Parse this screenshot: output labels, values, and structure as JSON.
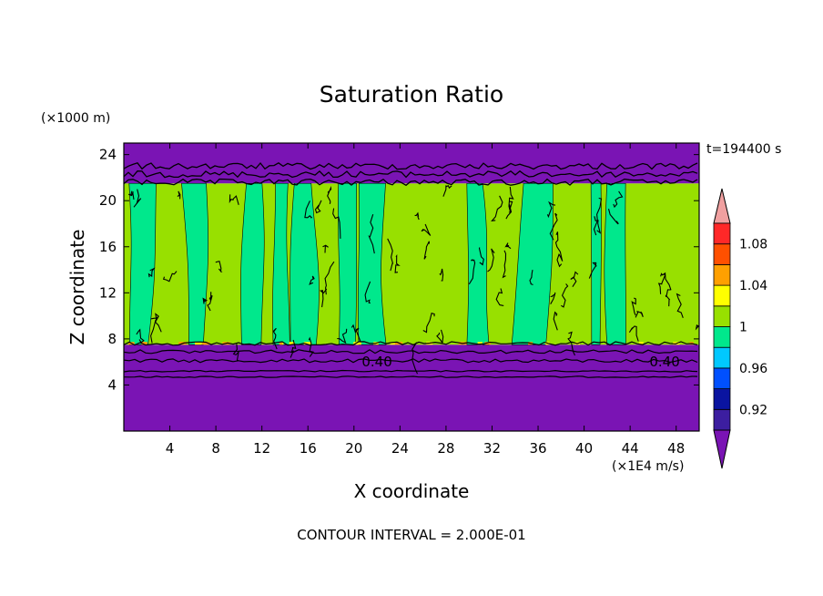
{
  "chart_data": {
    "type": "heatmap",
    "title": "Saturation Ratio",
    "xlabel": "X coordinate",
    "ylabel": "Z coordinate",
    "x_unit": "(×1E4 m/s)",
    "y_unit": "(×1000 m)",
    "time_label": "t=194400 s",
    "footer": "CONTOUR INTERVAL = 2.000E-01",
    "xlim": [
      0,
      50
    ],
    "ylim": [
      0,
      25
    ],
    "x_ticks": [
      4,
      8,
      12,
      16,
      20,
      24,
      28,
      32,
      36,
      40,
      44,
      48
    ],
    "y_ticks": [
      4,
      8,
      12,
      16,
      20,
      24
    ],
    "contour_labels": [
      {
        "text": "0.40",
        "x": 22,
        "y": 6
      },
      {
        "text": "0.40",
        "x": 47,
        "y": 6
      }
    ],
    "colorbar": {
      "levels": [
        "0.92",
        "0.96",
        "1",
        "1.04",
        "1.08"
      ],
      "bands": [
        {
          "from": 0.9,
          "to": 0.92,
          "color": "#3c1ea0"
        },
        {
          "from": 0.92,
          "to": 0.94,
          "color": "#0a14a0"
        },
        {
          "from": 0.94,
          "to": 0.96,
          "color": "#0050ff"
        },
        {
          "from": 0.96,
          "to": 0.98,
          "color": "#00c8ff"
        },
        {
          "from": 0.98,
          "to": 1.0,
          "color": "#00e88c"
        },
        {
          "from": 1.0,
          "to": 1.02,
          "color": "#98e000"
        },
        {
          "from": 1.02,
          "to": 1.04,
          "color": "#ffff00"
        },
        {
          "from": 1.04,
          "to": 1.06,
          "color": "#ffa000"
        },
        {
          "from": 1.06,
          "to": 1.08,
          "color": "#ff5000"
        },
        {
          "from": 1.08,
          "to": 1.1,
          "color": "#ff2828"
        }
      ],
      "below_color": "#7a14b4",
      "above_color": "#f0a0a0"
    },
    "field_regions": [
      {
        "zmin": 0,
        "zmax": 7.5,
        "value": "<0.90",
        "color": "#7a14b4"
      },
      {
        "zmin": 7.5,
        "zmax": 21.5,
        "value": "0.98-1.02",
        "color": "#98e000"
      },
      {
        "zmin": 21.5,
        "zmax": 25,
        "value": "<0.90",
        "color": "#7a14b4"
      }
    ],
    "grid": false
  }
}
